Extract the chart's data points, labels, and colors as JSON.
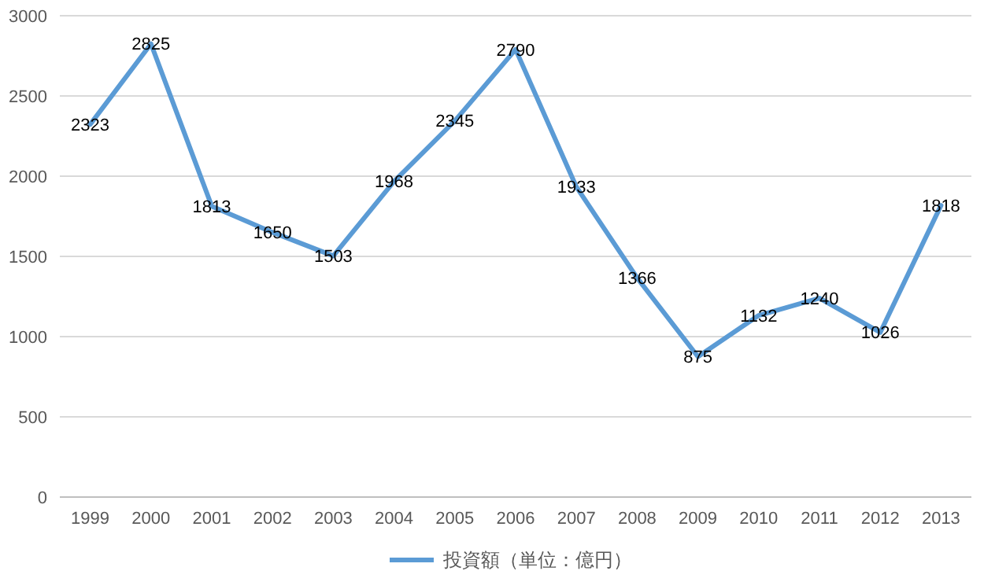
{
  "chart_data": {
    "type": "line",
    "categories": [
      "1999",
      "2000",
      "2001",
      "2002",
      "2003",
      "2004",
      "2005",
      "2006",
      "2007",
      "2008",
      "2009",
      "2010",
      "2011",
      "2012",
      "2013"
    ],
    "series": [
      {
        "name": "投資額（単位：億円）",
        "color": "#5b9bd5",
        "values": [
          2323,
          2825,
          1813,
          1650,
          1503,
          1968,
          2345,
          2790,
          1933,
          1366,
          875,
          1132,
          1240,
          1026,
          1818
        ]
      }
    ],
    "ylim": [
      0,
      3000
    ],
    "yticks": [
      0,
      500,
      1000,
      1500,
      2000,
      2500,
      3000
    ],
    "grid": "y",
    "legend": "bottom",
    "data_labels": true,
    "marker": "none",
    "line_style": "solid"
  }
}
